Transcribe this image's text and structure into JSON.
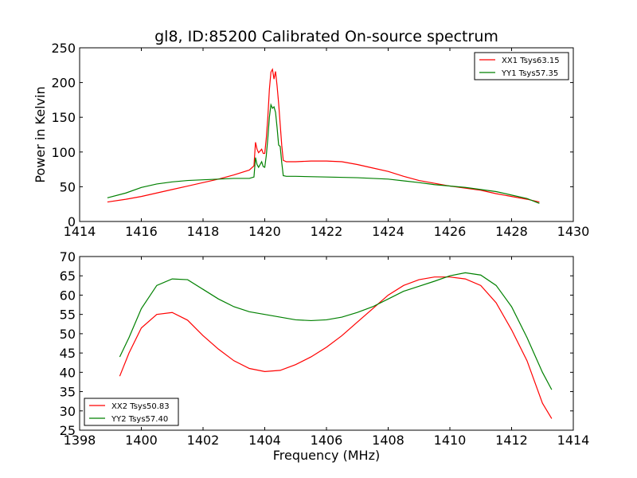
{
  "title": "gl8, ID:85200 Calibrated On-source spectrum",
  "chart_data": [
    {
      "type": "line",
      "xlabel": "",
      "ylabel": "Power in Kelvin",
      "xlim": [
        1414,
        1430
      ],
      "ylim": [
        0,
        250
      ],
      "xticks": [
        1414,
        1416,
        1418,
        1420,
        1422,
        1424,
        1426,
        1428,
        1430
      ],
      "yticks": [
        0,
        50,
        100,
        150,
        200,
        250
      ],
      "legend_position": "top-right",
      "grid": false,
      "series": [
        {
          "name": "XX1 Tsys63.15",
          "color": "#ff0000",
          "points": [
            [
              1414.9,
              28
            ],
            [
              1415.5,
              32
            ],
            [
              1416,
              36
            ],
            [
              1416.5,
              41
            ],
            [
              1417,
              46
            ],
            [
              1417.5,
              51
            ],
            [
              1418,
              56
            ],
            [
              1418.5,
              61
            ],
            [
              1419,
              67
            ],
            [
              1419.5,
              74
            ],
            [
              1419.65,
              80
            ],
            [
              1419.7,
              114
            ],
            [
              1419.75,
              104
            ],
            [
              1419.8,
              99
            ],
            [
              1419.9,
              104
            ],
            [
              1419.95,
              98
            ],
            [
              1420.0,
              98
            ],
            [
              1420.05,
              120
            ],
            [
              1420.1,
              150
            ],
            [
              1420.15,
              190
            ],
            [
              1420.2,
              215
            ],
            [
              1420.25,
              219
            ],
            [
              1420.3,
              205
            ],
            [
              1420.35,
              216
            ],
            [
              1420.4,
              195
            ],
            [
              1420.45,
              170
            ],
            [
              1420.5,
              140
            ],
            [
              1420.55,
              110
            ],
            [
              1420.6,
              88
            ],
            [
              1420.7,
              86
            ],
            [
              1421,
              86
            ],
            [
              1421.5,
              87
            ],
            [
              1422,
              87
            ],
            [
              1422.5,
              86
            ],
            [
              1423,
              82
            ],
            [
              1423.5,
              77
            ],
            [
              1424,
              72
            ],
            [
              1424.5,
              65
            ],
            [
              1425,
              59
            ],
            [
              1425.5,
              55
            ],
            [
              1426,
              51
            ],
            [
              1426.5,
              48
            ],
            [
              1427,
              45
            ],
            [
              1427.5,
              40
            ],
            [
              1428,
              36
            ],
            [
              1428.5,
              32
            ],
            [
              1428.9,
              28
            ]
          ]
        },
        {
          "name": "YY1 Tsys57.35",
          "color": "#008000",
          "points": [
            [
              1414.9,
              34
            ],
            [
              1415.5,
              41
            ],
            [
              1416,
              49
            ],
            [
              1416.5,
              54
            ],
            [
              1417,
              57
            ],
            [
              1417.5,
              59
            ],
            [
              1418,
              60
            ],
            [
              1418.5,
              61
            ],
            [
              1419,
              62
            ],
            [
              1419.5,
              62
            ],
            [
              1419.65,
              64
            ],
            [
              1419.7,
              92
            ],
            [
              1419.75,
              82
            ],
            [
              1419.8,
              78
            ],
            [
              1419.9,
              86
            ],
            [
              1419.95,
              79
            ],
            [
              1420.0,
              78
            ],
            [
              1420.05,
              95
            ],
            [
              1420.1,
              120
            ],
            [
              1420.15,
              150
            ],
            [
              1420.2,
              168
            ],
            [
              1420.25,
              163
            ],
            [
              1420.3,
              165
            ],
            [
              1420.35,
              157
            ],
            [
              1420.4,
              135
            ],
            [
              1420.45,
              110
            ],
            [
              1420.5,
              108
            ],
            [
              1420.55,
              85
            ],
            [
              1420.6,
              66
            ],
            [
              1420.7,
              65
            ],
            [
              1421,
              65
            ],
            [
              1422,
              64
            ],
            [
              1423,
              63
            ],
            [
              1424,
              61
            ],
            [
              1425,
              56
            ],
            [
              1425.5,
              53
            ],
            [
              1426,
              51
            ],
            [
              1426.5,
              49
            ],
            [
              1427,
              46
            ],
            [
              1427.5,
              43
            ],
            [
              1428,
              38
            ],
            [
              1428.5,
              33
            ],
            [
              1428.9,
              26
            ]
          ]
        }
      ]
    },
    {
      "type": "line",
      "xlabel": "Frequency (MHz)",
      "ylabel": "",
      "xlim": [
        1398,
        1414
      ],
      "ylim": [
        25,
        70
      ],
      "xticks": [
        1398,
        1400,
        1402,
        1404,
        1406,
        1408,
        1410,
        1412,
        1414
      ],
      "yticks": [
        25,
        30,
        35,
        40,
        45,
        50,
        55,
        60,
        65,
        70
      ],
      "legend_position": "bottom-left",
      "grid": false,
      "series": [
        {
          "name": "XX2 Tsys50.83",
          "color": "#ff0000",
          "points": [
            [
              1399.3,
              39
            ],
            [
              1399.6,
              45
            ],
            [
              1400,
              51.5
            ],
            [
              1400.5,
              55
            ],
            [
              1401,
              55.5
            ],
            [
              1401.5,
              53.5
            ],
            [
              1402,
              49.5
            ],
            [
              1402.5,
              46
            ],
            [
              1403,
              43
            ],
            [
              1403.5,
              41
            ],
            [
              1404,
              40.2
            ],
            [
              1404.5,
              40.5
            ],
            [
              1405,
              42
            ],
            [
              1405.5,
              44
            ],
            [
              1406,
              46.5
            ],
            [
              1406.5,
              49.5
            ],
            [
              1407,
              53
            ],
            [
              1407.5,
              56.5
            ],
            [
              1408,
              60
            ],
            [
              1408.5,
              62.5
            ],
            [
              1409,
              64
            ],
            [
              1409.5,
              64.7
            ],
            [
              1410,
              64.7
            ],
            [
              1410.5,
              64.2
            ],
            [
              1411,
              62.5
            ],
            [
              1411.5,
              58
            ],
            [
              1412,
              51
            ],
            [
              1412.5,
              43
            ],
            [
              1413,
              32
            ],
            [
              1413.3,
              28
            ]
          ]
        },
        {
          "name": "YY2 Tsys57.40",
          "color": "#008000",
          "points": [
            [
              1399.3,
              44
            ],
            [
              1399.6,
              49
            ],
            [
              1400,
              56.5
            ],
            [
              1400.5,
              62.5
            ],
            [
              1401,
              64.2
            ],
            [
              1401.5,
              64
            ],
            [
              1402,
              61.5
            ],
            [
              1402.5,
              59
            ],
            [
              1403,
              57
            ],
            [
              1403.5,
              55.7
            ],
            [
              1404,
              55
            ],
            [
              1404.5,
              54.3
            ],
            [
              1405,
              53.6
            ],
            [
              1405.5,
              53.4
            ],
            [
              1406,
              53.6
            ],
            [
              1406.5,
              54.3
            ],
            [
              1407,
              55.5
            ],
            [
              1407.5,
              57
            ],
            [
              1408,
              59
            ],
            [
              1408.5,
              61
            ],
            [
              1409,
              62.3
            ],
            [
              1409.5,
              63.6
            ],
            [
              1410,
              65
            ],
            [
              1410.5,
              65.8
            ],
            [
              1411,
              65.2
            ],
            [
              1411.5,
              62.5
            ],
            [
              1412,
              57
            ],
            [
              1412.5,
              49
            ],
            [
              1413,
              40
            ],
            [
              1413.3,
              35.5
            ]
          ]
        }
      ]
    }
  ]
}
